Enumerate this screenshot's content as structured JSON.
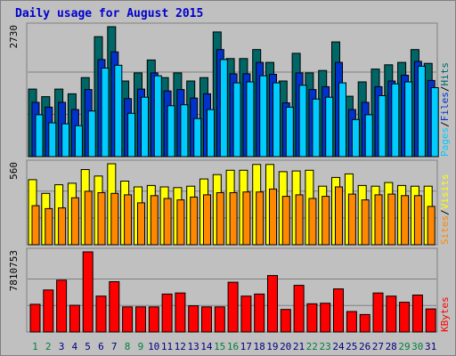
{
  "title": "Daily usage for August 2015",
  "colors": {
    "hits": "#006666",
    "files": "#0033cc",
    "pages": "#00ccff",
    "visits": "#ffff00",
    "sites": "#ff8800",
    "kbytes": "#ff0000",
    "weekday": "#000080",
    "weekend": "#008040",
    "plot_bg": "#c0c0c0",
    "frame": "#808080"
  },
  "legends": {
    "pages": "Pages",
    "files": "Files",
    "hits": "Hits",
    "sep": "/",
    "sites": "Sites",
    "visits": "Visits",
    "kbytes": "KBytes"
  },
  "chart_data": [
    {
      "type": "bar",
      "panel": "hits-files-pages",
      "categories": [
        "1",
        "2",
        "3",
        "4",
        "5",
        "6",
        "7",
        "8",
        "9",
        "10",
        "11",
        "12",
        "13",
        "14",
        "15",
        "16",
        "17",
        "18",
        "19",
        "20",
        "21",
        "22",
        "23",
        "24",
        "25",
        "26",
        "27",
        "28",
        "29",
        "30",
        "31"
      ],
      "weekend_days": [
        1,
        2,
        8,
        9,
        15,
        16,
        22,
        23,
        29,
        30
      ],
      "ymax_label": "2730",
      "ylim": [
        0,
        2730
      ],
      "series": [
        {
          "name": "Hits",
          "values": [
            1420,
            1260,
            1420,
            1320,
            1660,
            2520,
            2730,
            1590,
            1760,
            2030,
            1660,
            1760,
            1590,
            1660,
            2620,
            2060,
            2060,
            2250,
            1980,
            1590,
            2170,
            1760,
            1810,
            2410,
            1270,
            1570,
            1840,
            1930,
            1980,
            2250,
            1960
          ]
        },
        {
          "name": "Files",
          "values": [
            1140,
            1040,
            1140,
            990,
            1410,
            2040,
            2200,
            1220,
            1420,
            1760,
            1380,
            1410,
            1230,
            1320,
            2250,
            1740,
            1740,
            1980,
            1730,
            1130,
            1760,
            1410,
            1470,
            1980,
            990,
            1140,
            1470,
            1590,
            1710,
            2000,
            1600
          ]
        },
        {
          "name": "Pages",
          "values": [
            880,
            710,
            690,
            650,
            960,
            1860,
            1920,
            910,
            1250,
            1700,
            1070,
            1090,
            800,
            990,
            2040,
            1550,
            1570,
            1700,
            1550,
            1040,
            1500,
            1210,
            1250,
            1550,
            780,
            880,
            1280,
            1530,
            1570,
            1900,
            1450
          ]
        }
      ]
    },
    {
      "type": "bar",
      "panel": "visits-sites",
      "categories": [
        "1",
        "2",
        "3",
        "4",
        "5",
        "6",
        "7",
        "8",
        "9",
        "10",
        "11",
        "12",
        "13",
        "14",
        "15",
        "16",
        "17",
        "18",
        "19",
        "20",
        "21",
        "22",
        "23",
        "24",
        "25",
        "26",
        "27",
        "28",
        "29",
        "30",
        "31"
      ],
      "ymax_label": "560",
      "ylim": [
        0,
        560
      ],
      "series": [
        {
          "name": "Visits",
          "values": [
            450,
            355,
            415,
            425,
            520,
            475,
            560,
            440,
            400,
            410,
            400,
            395,
            405,
            455,
            485,
            515,
            515,
            555,
            555,
            505,
            510,
            515,
            405,
            465,
            490,
            410,
            405,
            430,
            410,
            405,
            405
          ]
        },
        {
          "name": "Sites",
          "values": [
            270,
            250,
            255,
            325,
            370,
            360,
            355,
            345,
            290,
            340,
            320,
            310,
            330,
            345,
            360,
            360,
            365,
            365,
            385,
            335,
            345,
            320,
            335,
            400,
            350,
            310,
            345,
            350,
            340,
            340,
            265
          ]
        }
      ]
    },
    {
      "type": "bar",
      "panel": "kbytes",
      "categories": [
        "1",
        "2",
        "3",
        "4",
        "5",
        "6",
        "7",
        "8",
        "9",
        "10",
        "11",
        "12",
        "13",
        "14",
        "15",
        "16",
        "17",
        "18",
        "19",
        "20",
        "21",
        "22",
        "23",
        "24",
        "25",
        "26",
        "27",
        "28",
        "29",
        "30",
        "31"
      ],
      "ymax_label": "7810753",
      "ylim": [
        0,
        7810753
      ],
      "series": [
        {
          "name": "KBytes",
          "values": [
            2700000,
            4100000,
            5050000,
            2600000,
            7810753,
            3500000,
            4900000,
            2450000,
            2450000,
            2450000,
            3700000,
            3800000,
            2550000,
            2450000,
            2450000,
            4850000,
            3500000,
            3700000,
            5500000,
            2200000,
            4550000,
            2750000,
            2800000,
            4200000,
            2000000,
            1700000,
            3800000,
            3500000,
            2900000,
            3600000,
            2250000
          ]
        }
      ]
    }
  ]
}
